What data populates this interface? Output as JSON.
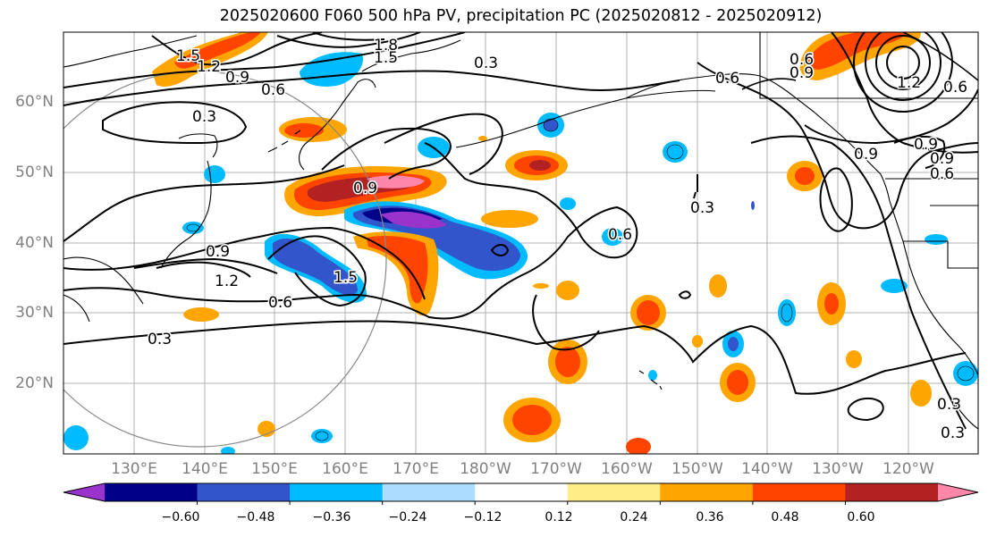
{
  "title": "2025020600 F060 500 hPa PV, precipitation PC (2025020812 - 2025020912)",
  "lat_labels": [
    "60°N",
    "50°N",
    "40°N",
    "30°N",
    "20°N"
  ],
  "lon_labels": [
    "130°E",
    "140°E",
    "150°E",
    "160°E",
    "170°E",
    "180°W",
    "170°W",
    "160°W",
    "150°W",
    "140°W",
    "130°W",
    "120°W"
  ],
  "contour_labels": [
    "1.5",
    "1.2",
    "0.9",
    "0.6",
    "0.3",
    "1.8",
    "1.5",
    "0.3",
    "0.6",
    "0.6",
    "0.3",
    "0.9",
    "0.9",
    "1.2",
    "0.9",
    "1.5",
    "0.6",
    "0.3",
    "0.6",
    "0.9",
    "0.3",
    "0.3",
    "0.6",
    "1.2",
    "0.9",
    "0.6",
    "0.9"
  ],
  "colorbar": {
    "tick_labels": [
      "−0.60",
      "−0.48",
      "−0.36",
      "−0.24",
      "−0.12",
      "0.12",
      "0.24",
      "0.36",
      "0.48",
      "0.60"
    ],
    "colors": [
      "#9933cc",
      "#000088",
      "#3355cc",
      "#00bbff",
      "#aaddff",
      "#ffffff",
      "#ffee88",
      "#ffa500",
      "#ff4400",
      "#b22222",
      "#ff88aa"
    ]
  }
}
